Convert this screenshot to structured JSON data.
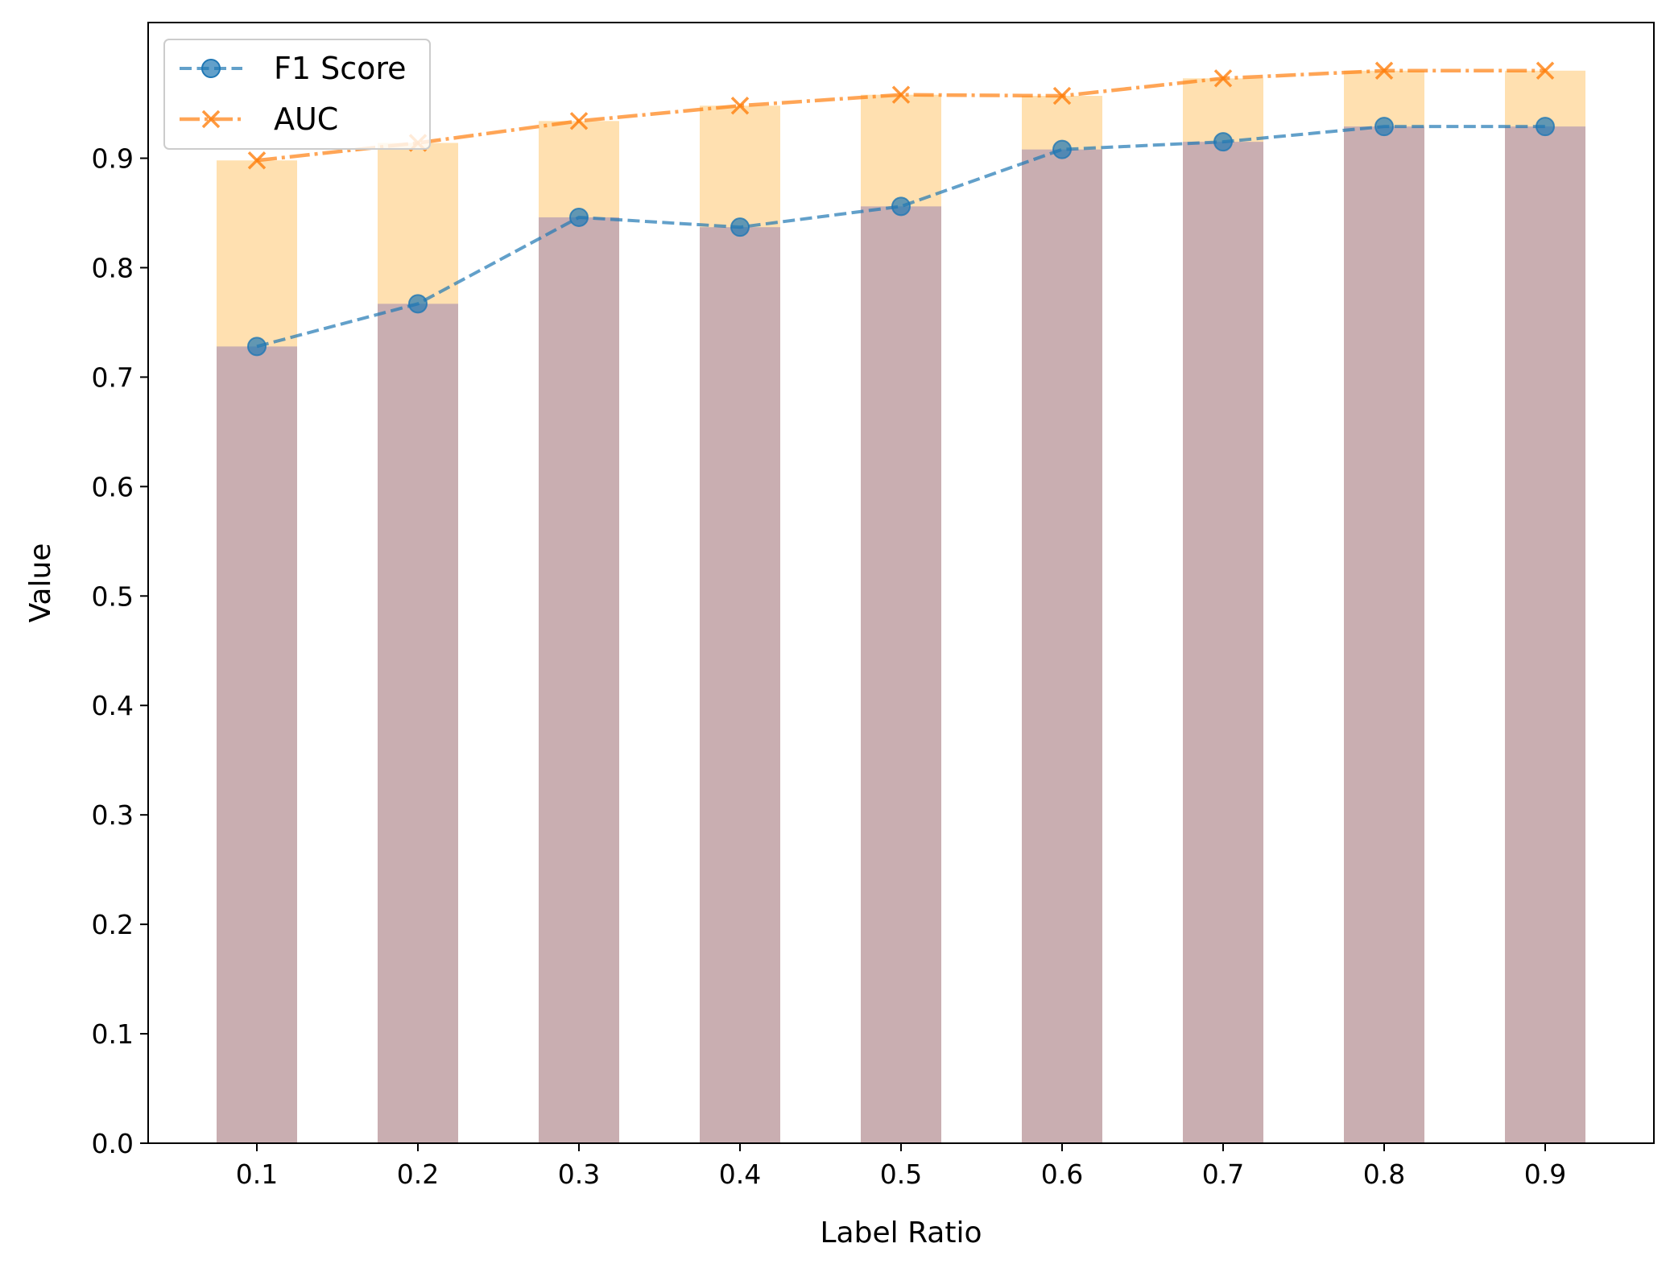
{
  "chart_data": {
    "type": "bar",
    "title": "",
    "xlabel": "Label Ratio",
    "ylabel": "Value",
    "categories": [
      "0.1",
      "0.2",
      "0.3",
      "0.4",
      "0.5",
      "0.6",
      "0.7",
      "0.8",
      "0.9"
    ],
    "x": [
      0.1,
      0.2,
      0.3,
      0.4,
      0.5,
      0.6,
      0.7,
      0.8,
      0.9
    ],
    "ylim": [
      0,
      1.03
    ],
    "yticks": [
      0.0,
      0.1,
      0.2,
      0.3,
      0.4,
      0.5,
      0.6,
      0.7,
      0.8,
      0.9
    ],
    "ytick_labels": [
      "0.0",
      "0.1",
      "0.2",
      "0.3",
      "0.4",
      "0.5",
      "0.6",
      "0.7",
      "0.8",
      "0.9"
    ],
    "grid": false,
    "legend_position": "top-left",
    "series": [
      {
        "name": "F1 Score",
        "kind": "line+bar",
        "line_style": "dashed",
        "marker": "circle",
        "line_color": "#1f77b4",
        "bar_color": "#c9aeb1",
        "values": [
          0.728,
          0.767,
          0.846,
          0.837,
          0.856,
          0.908,
          0.915,
          0.929,
          0.929
        ]
      },
      {
        "name": "AUC",
        "kind": "line+bar",
        "line_style": "dashdot",
        "marker": "x",
        "line_color": "#ff7f0e",
        "bar_color": "#ffe0b0",
        "values": [
          0.898,
          0.914,
          0.934,
          0.948,
          0.958,
          0.957,
          0.973,
          0.98,
          0.98
        ]
      }
    ]
  }
}
